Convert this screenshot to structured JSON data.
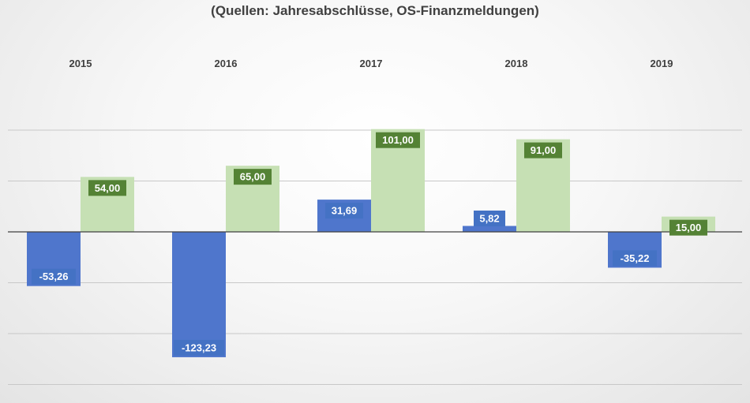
{
  "chart_data": {
    "type": "bar",
    "title": "(Quellen: Jahresabschlüsse, OS-Finanzmeldungen)",
    "categories": [
      "2015",
      "2016",
      "2017",
      "2018",
      "2019"
    ],
    "series": [
      {
        "values": [
          -53.26,
          -123.23,
          31.69,
          5.82,
          -35.22
        ],
        "labels": [
          "-53,26",
          "-123,23",
          "31,69",
          "5,82",
          "-35,22"
        ],
        "color": "#4f76cc",
        "label_bg": "#4472c4"
      },
      {
        "values": [
          54,
          65,
          101,
          91,
          15
        ],
        "labels": [
          "54,00",
          "65,00",
          "101,00",
          "91,00",
          "15,00"
        ],
        "color": "#c6e0b4",
        "label_bg": "#548235"
      }
    ],
    "ylim": [
      -150,
      100
    ],
    "grid": true,
    "legend": "none"
  }
}
